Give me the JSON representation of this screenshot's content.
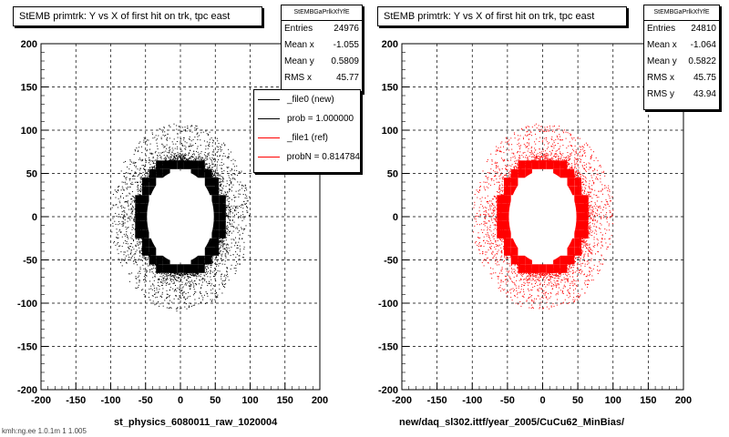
{
  "panels": [
    {
      "title": "StEMB primtrk: Y vs X of first hit on trk, tpc east",
      "stats_header": "StEMBGaPrlkXfYfE",
      "stats": [
        {
          "label": "Entries",
          "value": "24976"
        },
        {
          "label": "Mean x",
          "value": "-1.055"
        },
        {
          "label": "Mean y",
          "value": "0.5809"
        },
        {
          "label": "RMS x",
          "value": "45.77"
        }
      ],
      "xtitle": "st_physics_6080011_raw_1020004",
      "color": "#000000"
    },
    {
      "title": "StEMB primtrk: Y vs X of first hit on trk, tpc east",
      "stats_header": "StEMBGaPrlkXfYfE",
      "stats": [
        {
          "label": "Entries",
          "value": "24810"
        },
        {
          "label": "Mean x",
          "value": "-1.064"
        },
        {
          "label": "Mean y",
          "value": "0.5822"
        },
        {
          "label": "RMS x",
          "value": "45.75"
        },
        {
          "label": "RMS y",
          "value": "43.94"
        }
      ],
      "xtitle": "new/daq_sl302.ittf/year_2005/CuCu62_MinBias/",
      "color": "#ff0000"
    }
  ],
  "legend": [
    {
      "label": "_file0 (new)",
      "color": "#000000"
    },
    {
      "label": "prob = 1.000000",
      "color": "#000000"
    },
    {
      "label": "_file1 (ref)",
      "color": "#ff0000"
    },
    {
      "label": "probN = 0.814784",
      "color": "#ff0000"
    }
  ],
  "footer": "kmh:ng.ee 1.0.1m 1 1.005",
  "chart_data": [
    {
      "type": "scatter",
      "title": "StEMB primtrk: Y vs X of first hit on trk, tpc east",
      "xlabel": "st_physics_6080011_raw_1020004",
      "ylabel": "",
      "xlim": [
        -200,
        200
      ],
      "ylim": [
        -200,
        200
      ],
      "xticks": [
        -200,
        -150,
        -100,
        -50,
        0,
        50,
        100,
        150,
        200
      ],
      "yticks": [
        -200,
        -150,
        -100,
        -50,
        0,
        50,
        100,
        150,
        200
      ],
      "grid": true,
      "distribution": "ring of hits at radius ~60, with scattered hits out to ~100",
      "ring_radius_x": 58,
      "ring_radius_y": 63,
      "entries": 24976,
      "mean_x": -1.055,
      "mean_y": 0.5809,
      "rms_x": 45.77,
      "color": "#000000"
    },
    {
      "type": "scatter",
      "title": "StEMB primtrk: Y vs X of first hit on trk, tpc east",
      "xlabel": "new/daq_sl302.ittf/year_2005/CuCu62_MinBias/",
      "ylabel": "",
      "xlim": [
        -200,
        200
      ],
      "ylim": [
        -200,
        200
      ],
      "xticks": [
        -200,
        -150,
        -100,
        -50,
        0,
        50,
        100,
        150,
        200
      ],
      "yticks": [
        -200,
        -150,
        -100,
        -50,
        0,
        50,
        100,
        150,
        200
      ],
      "grid": true,
      "distribution": "ring of hits at radius ~60, with scattered hits out to ~100",
      "ring_radius_x": 58,
      "ring_radius_y": 63,
      "entries": 24810,
      "mean_x": -1.064,
      "mean_y": 0.5822,
      "rms_x": 45.75,
      "rms_y": 43.94,
      "color": "#ff0000"
    }
  ]
}
